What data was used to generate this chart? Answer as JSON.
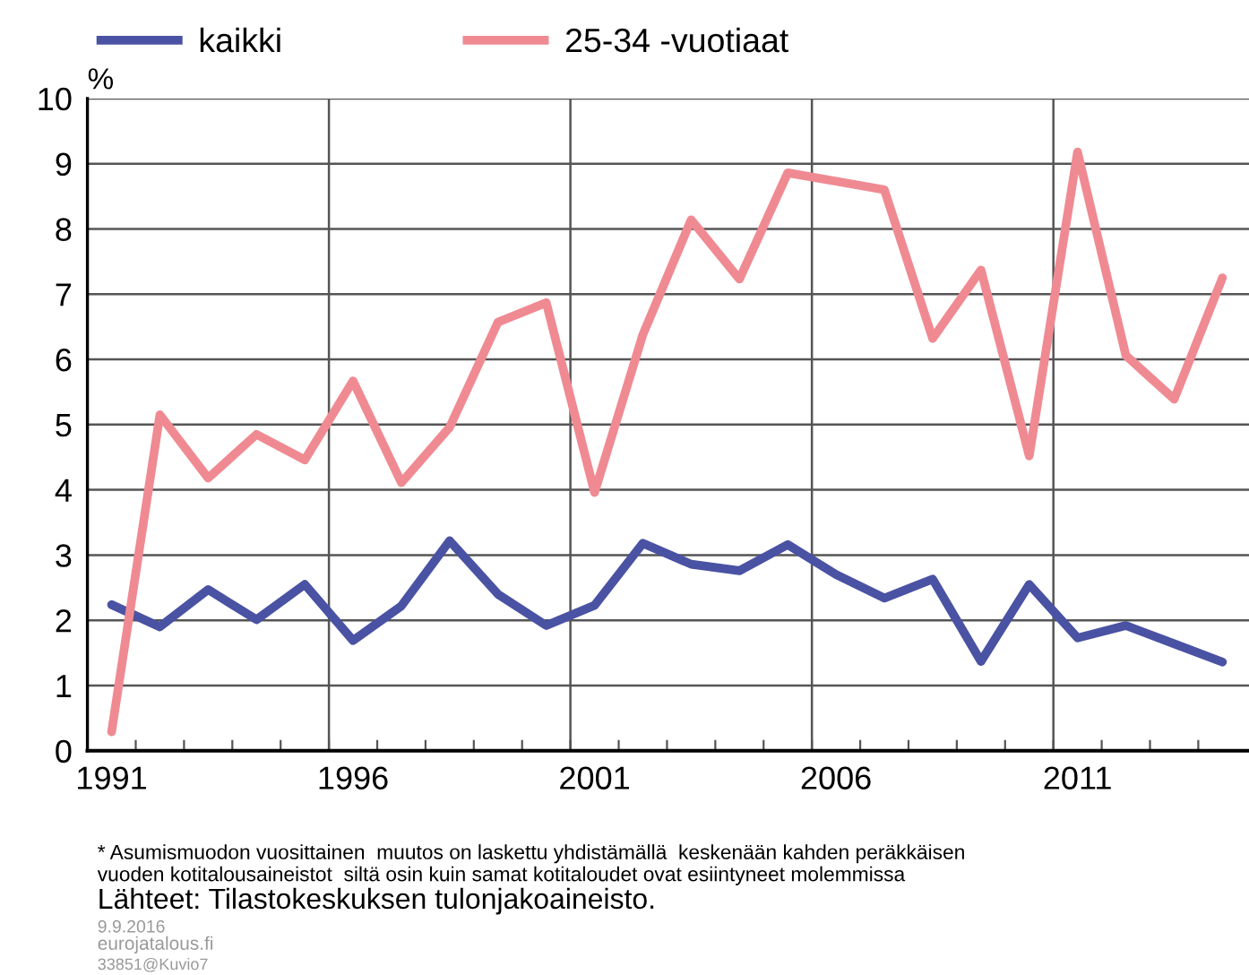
{
  "chart_data": {
    "type": "line",
    "categories": [
      "1991",
      null,
      null,
      null,
      null,
      "1996",
      null,
      null,
      null,
      null,
      "2001",
      null,
      null,
      null,
      null,
      "2006",
      null,
      null,
      null,
      null,
      "2011",
      null,
      null,
      null
    ],
    "series": [
      {
        "name": "kaikki",
        "color": "#4a52a3",
        "values": [
          2.24,
          1.9,
          2.47,
          2.01,
          2.55,
          1.69,
          2.22,
          3.22,
          2.4,
          1.92,
          2.23,
          3.18,
          2.86,
          2.76,
          3.16,
          2.7,
          2.34,
          2.63,
          1.37,
          2.55,
          1.73,
          1.92,
          1.64,
          1.36
        ]
      },
      {
        "name": "25-34 -vuotiaat",
        "color": "#f08a92",
        "values": [
          0.29,
          5.15,
          4.18,
          4.85,
          4.46,
          5.67,
          4.11,
          4.96,
          6.57,
          6.87,
          3.96,
          6.38,
          8.14,
          7.23,
          8.86,
          8.73,
          8.6,
          6.32,
          7.37,
          4.52,
          9.18,
          6.06,
          5.39,
          7.25
        ]
      }
    ],
    "ylabel": "%",
    "ylim": [
      0,
      10
    ],
    "yticks": [
      0,
      1,
      2,
      3,
      4,
      5,
      6,
      7,
      8,
      9,
      10
    ],
    "grid": true,
    "legend": "top",
    "marker": "none",
    "line_style": "solid",
    "annotations": [
      "* Asumismuodon vuosittainen  muutos on laskettu yhdistämällä  keskenään kahden peräkkäisen vuoden kotitalousaineistot  siltä osin kuin samat kotitaloudet ovat esiintyneet molemmissa",
      "Lähteet: Tilastokeskuksen tulonjakoaineisto.",
      "9.9.2016",
      "eurojatalous.fi",
      "33851@Kuvio7"
    ]
  }
}
